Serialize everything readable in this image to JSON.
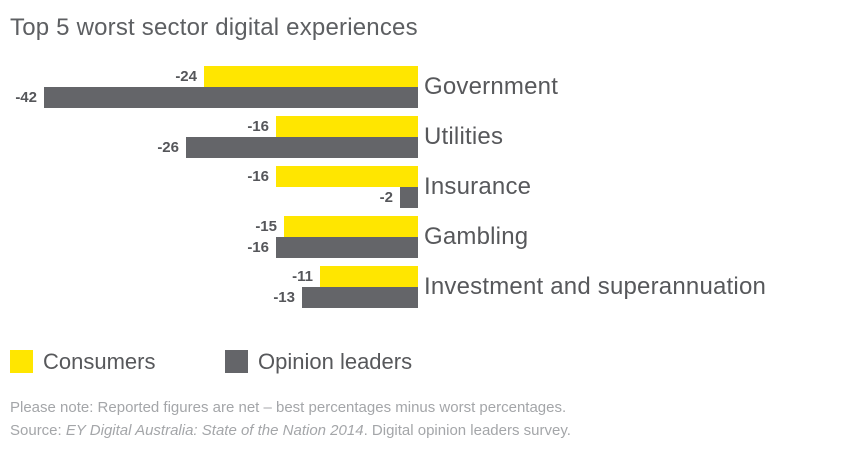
{
  "title": "Top 5 worst sector digital experiences",
  "chart_data": {
    "type": "bar",
    "orientation": "horizontal",
    "title": "Top 5 worst sector digital experiences",
    "categories": [
      "Government",
      "Utilities",
      "Insurance",
      "Gambling",
      "Investment and superannuation"
    ],
    "series": [
      {
        "name": "Consumers",
        "color": "#FFE600",
        "values": [
          -24,
          -16,
          -16,
          -15,
          -11
        ]
      },
      {
        "name": "Opinion leaders",
        "color": "#646569",
        "values": [
          -42,
          -26,
          -2,
          -16,
          -13
        ]
      }
    ],
    "value_labels": {
      "Consumers": [
        "-24",
        "-16",
        "-16",
        "-15",
        "-11"
      ],
      "Opinion leaders": [
        "-42",
        "-26",
        "-2",
        "-16",
        "-13"
      ]
    },
    "xlim": [
      -42,
      0
    ],
    "grid": false,
    "legend_position": "bottom-left",
    "axis_hidden": true
  },
  "legend": {
    "items": [
      {
        "label": "Consumers",
        "color": "#FFE600"
      },
      {
        "label": "Opinion leaders",
        "color": "#646569"
      }
    ]
  },
  "footer": {
    "note": "Please note: Reported figures are net – best percentages minus worst percentages.",
    "source_prefix": "Source: ",
    "source_italic": "EY Digital Australia: State of the Nation 2014",
    "source_suffix": ". Digital opinion leaders survey."
  },
  "colors": {
    "consumers": "#FFE600",
    "opinion_leaders": "#646569",
    "title_text": "#5d5f62",
    "category_text": "#57585b",
    "value_text": "#55565a",
    "footer_text": "#a4a6a9",
    "background": "#ffffff"
  }
}
